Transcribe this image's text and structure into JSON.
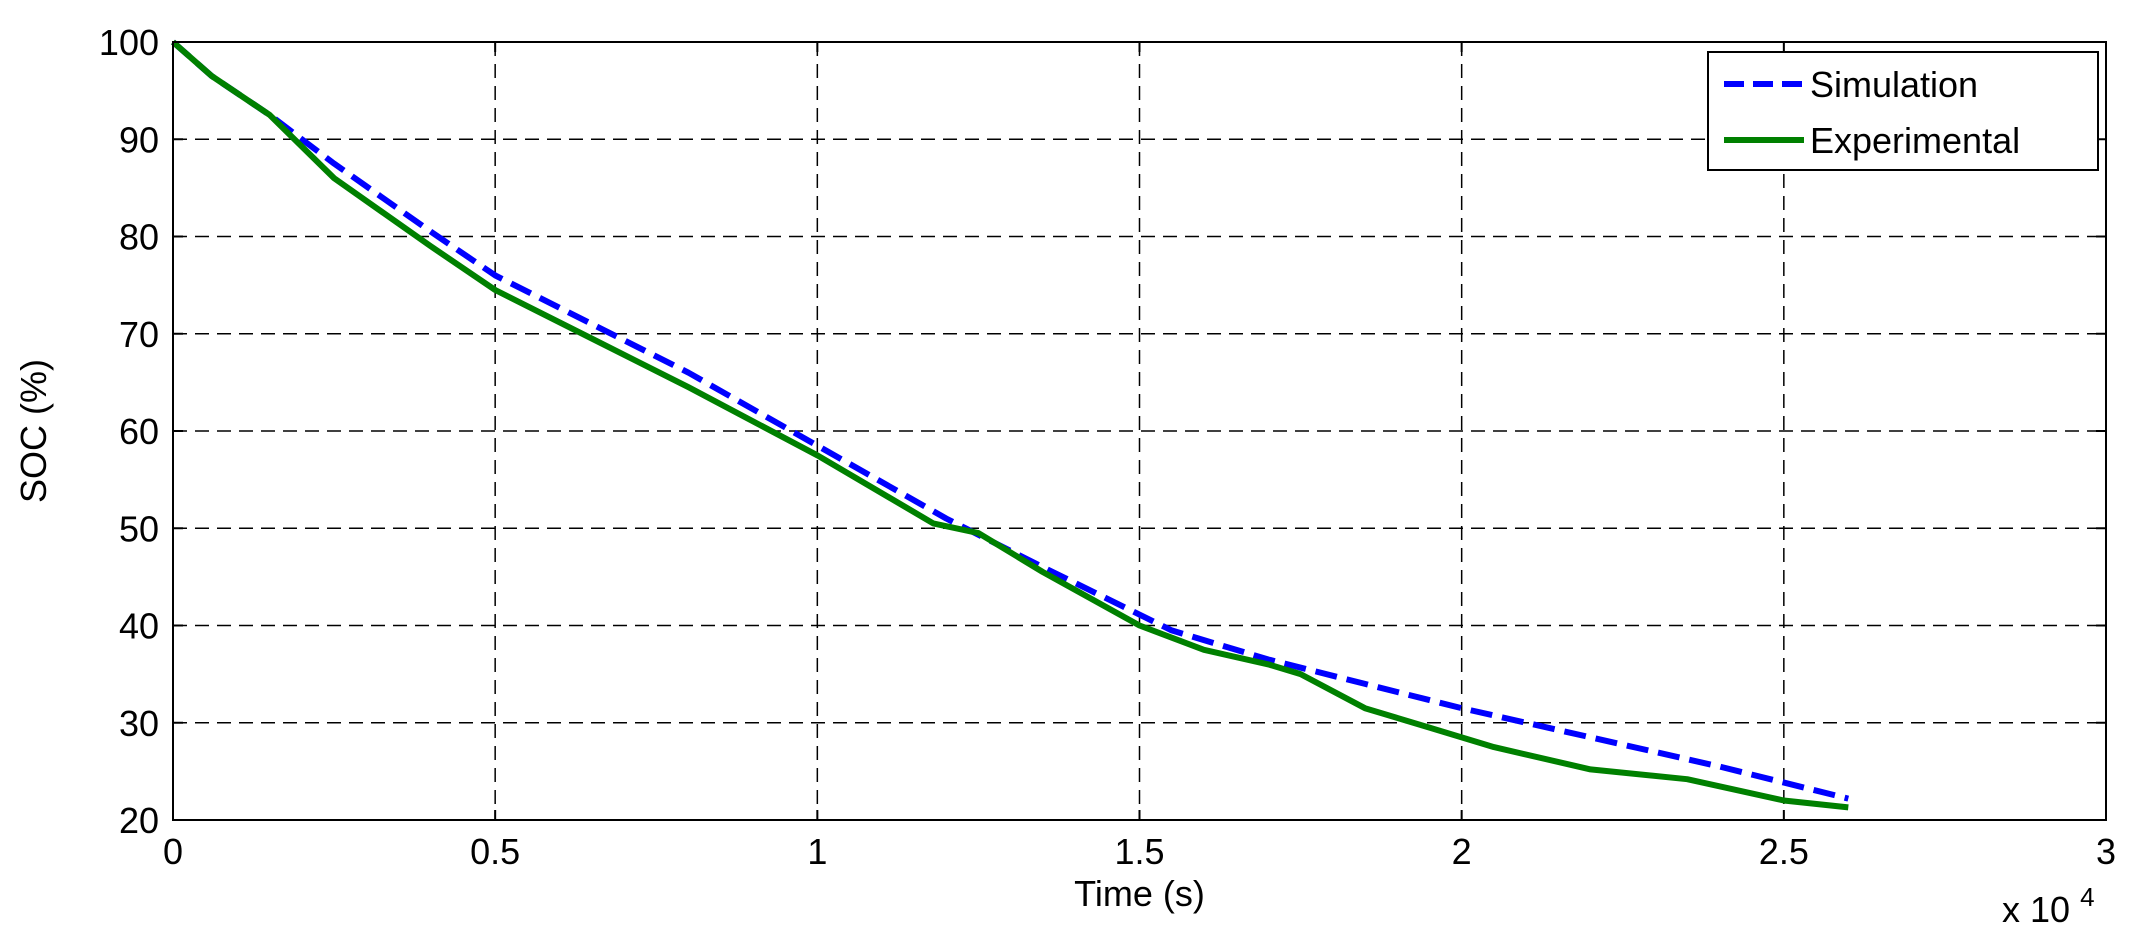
{
  "chart_data": {
    "type": "line",
    "title": "",
    "xlabel": "Time (s)",
    "ylabel": "SOC (%)",
    "x_multiplier_label": "x 10",
    "x_multiplier_exponent": "4",
    "xlim": [
      0,
      30000
    ],
    "ylim": [
      20,
      100
    ],
    "xticks": [
      {
        "value": 0,
        "label": "0"
      },
      {
        "value": 5000,
        "label": "0.5"
      },
      {
        "value": 10000,
        "label": "1"
      },
      {
        "value": 15000,
        "label": "1.5"
      },
      {
        "value": 20000,
        "label": "2"
      },
      {
        "value": 25000,
        "label": "2.5"
      },
      {
        "value": 30000,
        "label": "3"
      }
    ],
    "yticks": [
      {
        "value": 20,
        "label": "20"
      },
      {
        "value": 30,
        "label": "30"
      },
      {
        "value": 40,
        "label": "40"
      },
      {
        "value": 50,
        "label": "50"
      },
      {
        "value": 60,
        "label": "60"
      },
      {
        "value": 70,
        "label": "70"
      },
      {
        "value": 80,
        "label": "80"
      },
      {
        "value": 90,
        "label": "90"
      },
      {
        "value": 100,
        "label": "100"
      }
    ],
    "grid": true,
    "legend_position": "top-right",
    "series": [
      {
        "name": "Simulation",
        "color": "#0000ff",
        "style": "dashed",
        "x": [
          0,
          600,
          1500,
          2500,
          4000,
          5000,
          6500,
          8000,
          10000,
          12000,
          13500,
          15500,
          17000,
          18500,
          20000,
          22000,
          24000,
          26000
        ],
        "y": [
          100,
          96.5,
          92.5,
          87.5,
          80.5,
          76,
          71,
          66,
          58.5,
          51,
          46,
          39.5,
          36.5,
          34,
          31.5,
          28.5,
          25.5,
          22.2
        ]
      },
      {
        "name": "Experimental",
        "color": "#008000",
        "style": "solid",
        "x": [
          0,
          600,
          1500,
          2500,
          4000,
          5000,
          6500,
          8000,
          10000,
          11800,
          12500,
          13500,
          15000,
          16000,
          17000,
          17500,
          18500,
          19500,
          20500,
          22000,
          23500,
          25000,
          26000
        ],
        "y": [
          100,
          96.5,
          92.5,
          86,
          79,
          74.5,
          69.5,
          64.5,
          57.5,
          50.5,
          49.5,
          45.5,
          40,
          37.5,
          36,
          35,
          31.5,
          29.5,
          27.5,
          25.2,
          24.2,
          22,
          21.3
        ]
      }
    ]
  }
}
